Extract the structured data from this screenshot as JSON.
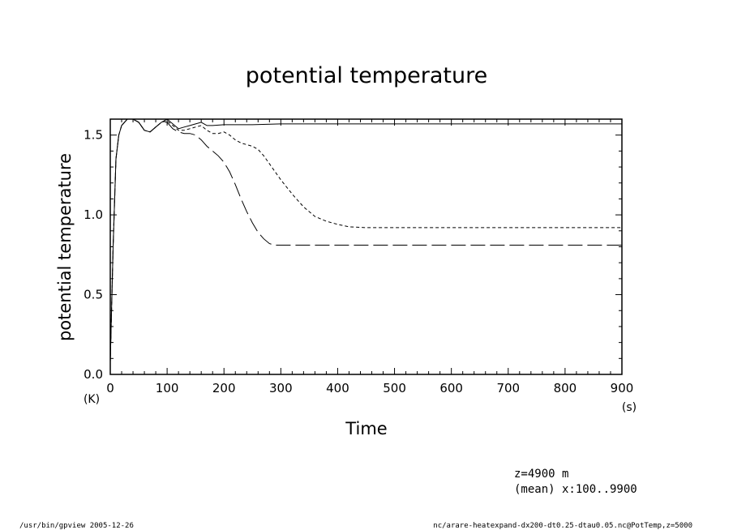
{
  "chart_data": {
    "type": "line",
    "title": "potential temperature",
    "xlabel": "Time",
    "ylabel": "potential temperature",
    "x_unit": "(s)",
    "y_unit": "(K)",
    "xlim": [
      0,
      900
    ],
    "ylim": [
      0,
      1.6
    ],
    "xticks": [
      0,
      100,
      200,
      300,
      400,
      500,
      600,
      700,
      800,
      900
    ],
    "xtick_labels": [
      "0",
      "100",
      "200",
      "300",
      "400",
      "500",
      "600",
      "700",
      "800",
      "900"
    ],
    "yticks": [
      0,
      0.5,
      1.0,
      1.5
    ],
    "ytick_labels": [
      "0.0",
      "0.5",
      "1.0",
      "1.5"
    ],
    "grid": false,
    "legend": "none",
    "series": [
      {
        "line_style": "solid",
        "x": [
          0,
          5,
          10,
          15,
          20,
          30,
          40,
          50,
          60,
          70,
          80,
          90,
          100,
          110,
          120,
          130,
          140,
          150,
          160,
          170,
          180,
          200,
          250,
          300,
          400,
          500,
          600,
          700,
          800,
          900
        ],
        "y": [
          0.08,
          0.8,
          1.35,
          1.5,
          1.56,
          1.6,
          1.6,
          1.58,
          1.53,
          1.52,
          1.55,
          1.58,
          1.6,
          1.57,
          1.54,
          1.55,
          1.56,
          1.57,
          1.58,
          1.56,
          1.56,
          1.565,
          1.565,
          1.57,
          1.57,
          1.57,
          1.57,
          1.57,
          1.57,
          1.57
        ]
      },
      {
        "line_style": "short-dash",
        "x": [
          0,
          5,
          10,
          15,
          20,
          30,
          40,
          50,
          60,
          70,
          80,
          90,
          100,
          110,
          120,
          130,
          140,
          150,
          160,
          170,
          180,
          190,
          200,
          210,
          220,
          230,
          240,
          250,
          260,
          270,
          280,
          290,
          300,
          320,
          340,
          360,
          380,
          400,
          420,
          450,
          500,
          600,
          700,
          800,
          900
        ],
        "y": [
          0.08,
          0.8,
          1.35,
          1.5,
          1.56,
          1.6,
          1.6,
          1.58,
          1.53,
          1.52,
          1.55,
          1.58,
          1.59,
          1.56,
          1.53,
          1.53,
          1.54,
          1.55,
          1.56,
          1.53,
          1.51,
          1.51,
          1.52,
          1.5,
          1.47,
          1.45,
          1.44,
          1.43,
          1.41,
          1.37,
          1.32,
          1.27,
          1.22,
          1.13,
          1.05,
          0.99,
          0.96,
          0.94,
          0.925,
          0.92,
          0.92,
          0.92,
          0.92,
          0.92,
          0.92
        ]
      },
      {
        "line_style": "long-dash",
        "x": [
          0,
          5,
          10,
          15,
          20,
          30,
          40,
          50,
          60,
          70,
          80,
          90,
          100,
          110,
          120,
          130,
          140,
          150,
          160,
          170,
          180,
          190,
          200,
          210,
          220,
          230,
          240,
          250,
          260,
          270,
          280,
          290,
          300,
          320,
          350,
          400,
          500,
          600,
          700,
          800,
          900
        ],
        "y": [
          0.08,
          0.8,
          1.35,
          1.5,
          1.56,
          1.6,
          1.6,
          1.58,
          1.53,
          1.52,
          1.55,
          1.58,
          1.58,
          1.54,
          1.52,
          1.51,
          1.51,
          1.5,
          1.47,
          1.43,
          1.4,
          1.37,
          1.33,
          1.27,
          1.19,
          1.1,
          1.02,
          0.95,
          0.89,
          0.85,
          0.82,
          0.81,
          0.81,
          0.81,
          0.81,
          0.81,
          0.81,
          0.81,
          0.81,
          0.81,
          0.81
        ]
      }
    ]
  },
  "annotations": {
    "z_info": "z=4900  m",
    "mean_info": "(mean) x:100..9900"
  },
  "footer": {
    "left": "/usr/bin/gpview  2005-12-26",
    "right": "nc/arare-heatexpand-dx200-dt0.25-dtau0.05.nc@PotTemp,z=5000"
  }
}
